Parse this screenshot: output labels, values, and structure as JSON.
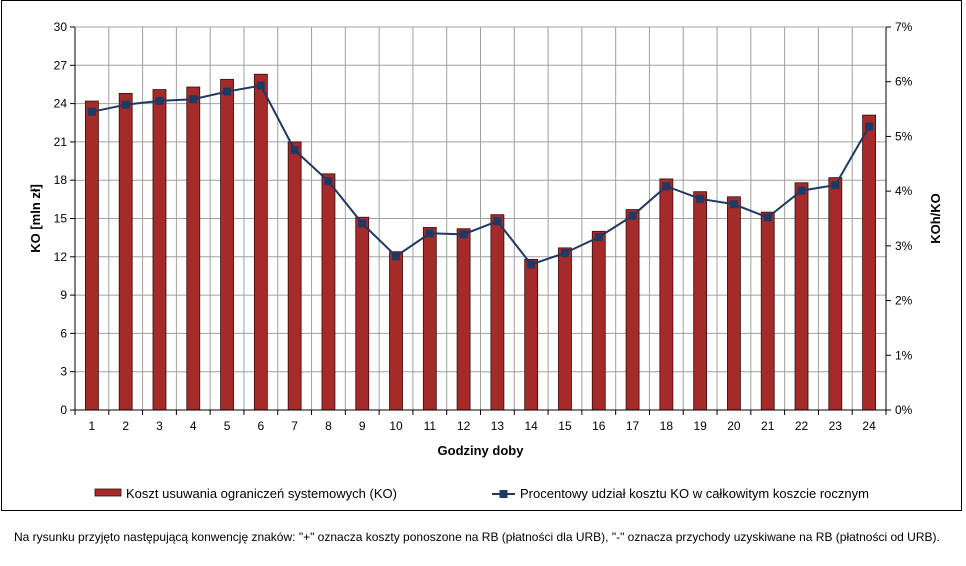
{
  "chart_data": {
    "type": "bar+line",
    "categories": [
      "1",
      "2",
      "3",
      "4",
      "5",
      "6",
      "7",
      "8",
      "9",
      "10",
      "11",
      "12",
      "13",
      "14",
      "15",
      "16",
      "17",
      "18",
      "19",
      "20",
      "21",
      "22",
      "23",
      "24"
    ],
    "series": [
      {
        "name": "Koszt usuwania ograniczeń systemowych (KO)",
        "type": "bar",
        "axis": "left",
        "color": "#A52A2A",
        "values": [
          24.2,
          24.8,
          25.1,
          25.3,
          25.9,
          26.3,
          21.0,
          18.5,
          15.1,
          12.4,
          14.3,
          14.2,
          15.3,
          11.8,
          12.7,
          14.0,
          15.7,
          18.1,
          17.1,
          16.7,
          15.5,
          17.8,
          18.2,
          23.1
        ]
      },
      {
        "name": "Procentowy udział kosztu KO w całkowitym koszcie rocznym",
        "type": "line",
        "axis": "right",
        "color": "#1F3864",
        "values": [
          5.45,
          5.58,
          5.65,
          5.68,
          5.82,
          5.93,
          4.75,
          4.18,
          3.41,
          2.81,
          3.23,
          3.21,
          3.45,
          2.66,
          2.87,
          3.16,
          3.55,
          4.09,
          3.86,
          3.76,
          3.52,
          4.01,
          4.11,
          5.18
        ]
      }
    ],
    "xlabel": "Godziny doby",
    "ylabel": "KO [mln zł]",
    "y2label": "KOh/KO",
    "ylim": [
      0,
      30
    ],
    "y2lim": [
      0,
      7
    ],
    "yticks": [
      "0",
      "3",
      "6",
      "9",
      "12",
      "15",
      "18",
      "21",
      "24",
      "27",
      "30"
    ],
    "y2ticks": [
      "0%",
      "1%",
      "2%",
      "3%",
      "4%",
      "5%",
      "6%",
      "7%"
    ],
    "grid": true,
    "legend": "bottom"
  },
  "footnote": "Na rysunku przyjęto następującą konwencję znaków: \"+\" oznacza koszty ponoszone na RB (płatności dla URB), \"-\" oznacza przychody uzyskiwane na RB (płatności od URB)."
}
